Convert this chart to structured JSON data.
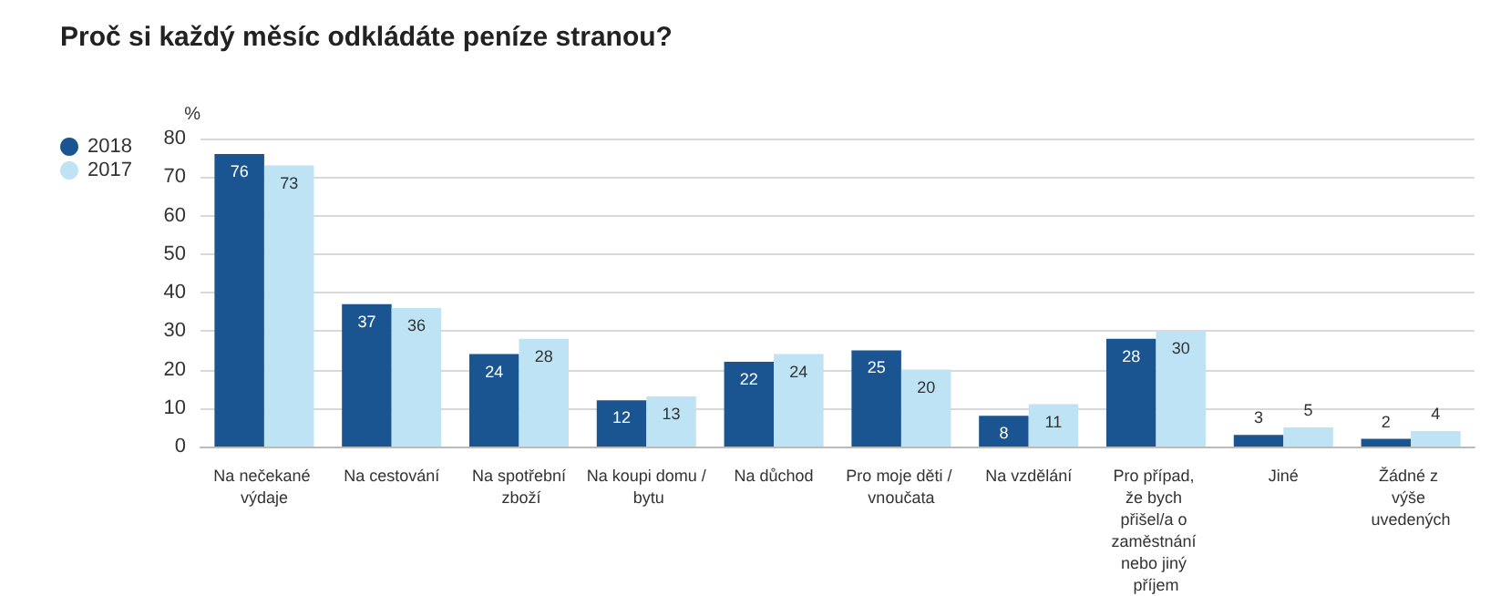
{
  "chart_data": {
    "type": "bar",
    "title": "Proč si každý měsíc odkládáte peníze stranou?",
    "ylabel": "%",
    "categories": [
      "Na nečekané výdaje",
      "Na cestování",
      "Na spotřební zboží",
      "Na koupi domu / bytu",
      "Na důchod",
      "Pro moje děti / vnoučata",
      "Na vzdělání",
      "Pro případ, že bych přišel/a o zaměstnání nebo jiný příjem",
      "Jiné",
      "Žádné z výše uvedených"
    ],
    "series": [
      {
        "name": "2018",
        "color": "#1b5591",
        "values": [
          76,
          37,
          24,
          12,
          22,
          25,
          8,
          28,
          3,
          2
        ]
      },
      {
        "name": "2017",
        "color": "#bde3f5",
        "values": [
          73,
          36,
          28,
          13,
          24,
          20,
          11,
          30,
          5,
          4
        ]
      }
    ],
    "ylim": [
      0,
      80
    ],
    "yticks": [
      0,
      10,
      20,
      30,
      40,
      50,
      60,
      70,
      80
    ],
    "grid": "y",
    "legend": "top left",
    "data_labels": true
  }
}
